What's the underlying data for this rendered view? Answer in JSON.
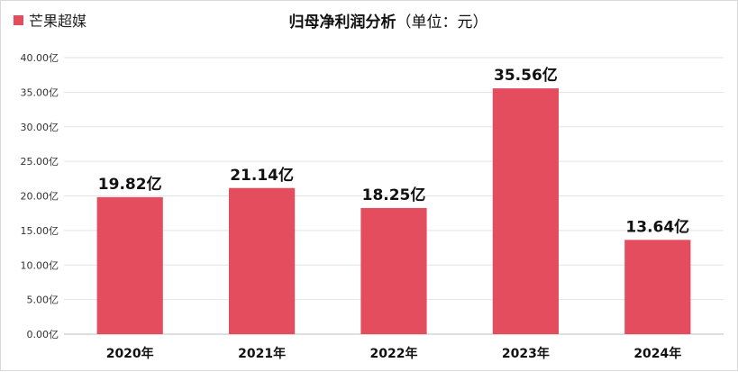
{
  "legend": {
    "label": "芒果超媒",
    "color": "#e44d5e"
  },
  "title": {
    "main": "归母净利润分析",
    "sub": "（单位：元）"
  },
  "chart_data": {
    "type": "bar",
    "categories": [
      "2020年",
      "2021年",
      "2022年",
      "2023年",
      "2024年"
    ],
    "series": [
      {
        "name": "芒果超媒",
        "values": [
          19.82,
          21.14,
          18.25,
          35.56,
          13.64
        ]
      }
    ],
    "data_labels": [
      "19.82亿",
      "21.14亿",
      "18.25亿",
      "35.56亿",
      "13.64亿"
    ],
    "unit": "亿",
    "y_ticks": [
      "0.00亿",
      "5.00亿",
      "10.00亿",
      "15.00亿",
      "20.00亿",
      "25.00亿",
      "30.00亿",
      "35.00亿",
      "40.00亿"
    ],
    "ylim": [
      0,
      40
    ],
    "grid": true,
    "legend_position": "top-left",
    "bar_color": "#e44d5e"
  }
}
